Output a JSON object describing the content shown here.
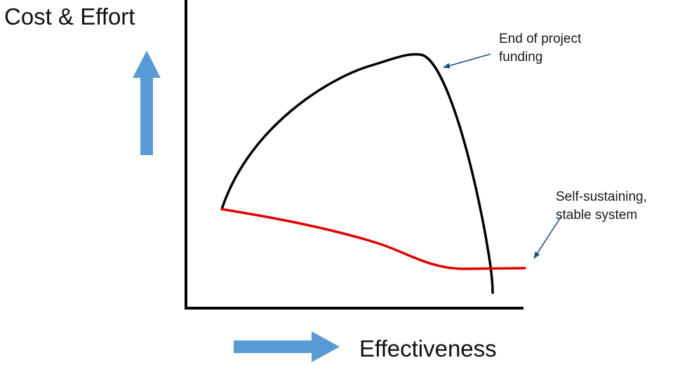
{
  "labels": {
    "y_axis": "Cost & Effort",
    "x_axis": "Effectiveness"
  },
  "annotations": {
    "funding": {
      "line1": "End of project",
      "line2": "funding"
    },
    "stable": {
      "line1": "Self-sustaining,",
      "line2": "stable system"
    }
  },
  "colors": {
    "axis": "#000000",
    "funded_curve": "#000000",
    "sustaining_curve": "#e00000",
    "direction_arrows": "#5b9bd5",
    "annotation_arrows": "#1f4e79"
  },
  "icons": {
    "y_direction": "up-arrow-icon",
    "x_direction": "right-arrow-icon"
  }
}
